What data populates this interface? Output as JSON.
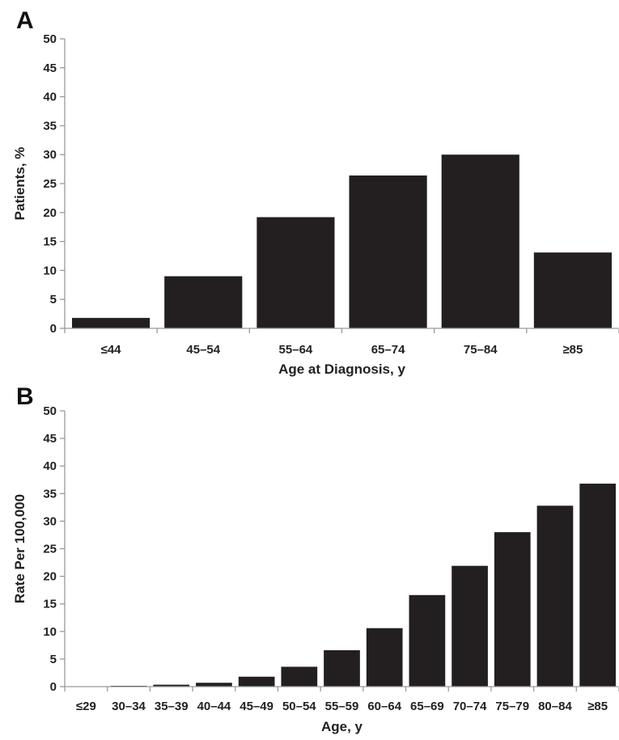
{
  "chart_data": [
    {
      "panel": "A",
      "type": "bar",
      "categories": [
        "≤44",
        "45–54",
        "55–64",
        "65–74",
        "75–84",
        "≥85"
      ],
      "values": [
        1.8,
        9.0,
        19.2,
        26.4,
        30.0,
        13.1
      ],
      "xlabel": "Age at Diagnosis, y",
      "ylabel": "Patients, %",
      "ylim": [
        0,
        50
      ],
      "yticks": [
        0,
        5,
        10,
        15,
        20,
        25,
        30,
        35,
        40,
        45,
        50
      ],
      "grid": false,
      "bar_color": "#231f20"
    },
    {
      "panel": "B",
      "type": "bar",
      "categories": [
        "≤29",
        "30–34",
        "35–39",
        "40–44",
        "45–49",
        "50–54",
        "55–59",
        "60–64",
        "65–69",
        "70–74",
        "75–79",
        "80–84",
        "≥85"
      ],
      "values": [
        0.05,
        0.15,
        0.35,
        0.7,
        1.8,
        3.6,
        6.6,
        10.6,
        16.6,
        21.9,
        28.0,
        32.8,
        36.8
      ],
      "xlabel": "Age, y",
      "ylabel": "Rate Per 100,000",
      "ylim": [
        0,
        50
      ],
      "yticks": [
        0,
        5,
        10,
        15,
        20,
        25,
        30,
        35,
        40,
        45,
        50
      ],
      "grid": false,
      "bar_color": "#231f20"
    }
  ]
}
